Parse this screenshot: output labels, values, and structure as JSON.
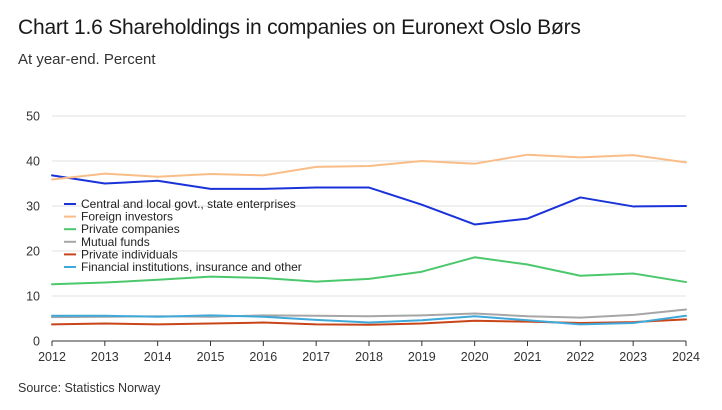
{
  "chart_data": {
    "type": "line",
    "title": "Chart 1.6 Shareholdings in companies on Euronext Oslo Børs",
    "subtitle": "At year-end. Percent",
    "source": "Source: Statistics Norway",
    "xlabel": "",
    "ylabel": "",
    "x": [
      "2012",
      "2013",
      "2014",
      "2015",
      "2016",
      "2017",
      "2018",
      "2019",
      "2020",
      "2021",
      "2022",
      "2023",
      "2024"
    ],
    "ylim": [
      0,
      50
    ],
    "yticks": [
      0,
      10,
      20,
      30,
      40,
      50
    ],
    "grid": "horizontal",
    "legend_position": "center-left",
    "series": [
      {
        "name": "Central and local govt., state enterprises",
        "color": "#1a33d9",
        "values": [
          36.8,
          35.0,
          35.6,
          33.8,
          33.8,
          34.1,
          34.1,
          30.3,
          25.9,
          27.2,
          31.9,
          29.9,
          30.0
        ]
      },
      {
        "name": "Foreign investors",
        "color": "#f9bd88",
        "values": [
          35.9,
          37.2,
          36.5,
          37.1,
          36.8,
          38.7,
          38.9,
          40.0,
          39.4,
          41.4,
          40.8,
          41.3,
          39.7
        ]
      },
      {
        "name": "Private companies",
        "color": "#4cc86c",
        "values": [
          12.6,
          13.0,
          13.6,
          14.3,
          14.0,
          13.2,
          13.8,
          15.4,
          18.6,
          17.0,
          14.5,
          15.0,
          13.1
        ]
      },
      {
        "name": "Mutual funds",
        "color": "#a6a6a6",
        "values": [
          5.3,
          5.4,
          5.5,
          5.4,
          5.7,
          5.6,
          5.5,
          5.7,
          6.1,
          5.5,
          5.2,
          5.8,
          7.0
        ]
      },
      {
        "name": "Private individuals",
        "color": "#c8451a",
        "values": [
          3.7,
          3.9,
          3.7,
          3.9,
          4.1,
          3.7,
          3.6,
          3.9,
          4.5,
          4.3,
          4.0,
          4.2,
          4.8
        ]
      },
      {
        "name": "Financial institutions, insurance and other",
        "color": "#3fa9d9",
        "values": [
          5.6,
          5.6,
          5.4,
          5.7,
          5.4,
          4.7,
          4.1,
          4.6,
          5.5,
          4.6,
          3.7,
          4.0,
          5.6
        ]
      }
    ]
  }
}
